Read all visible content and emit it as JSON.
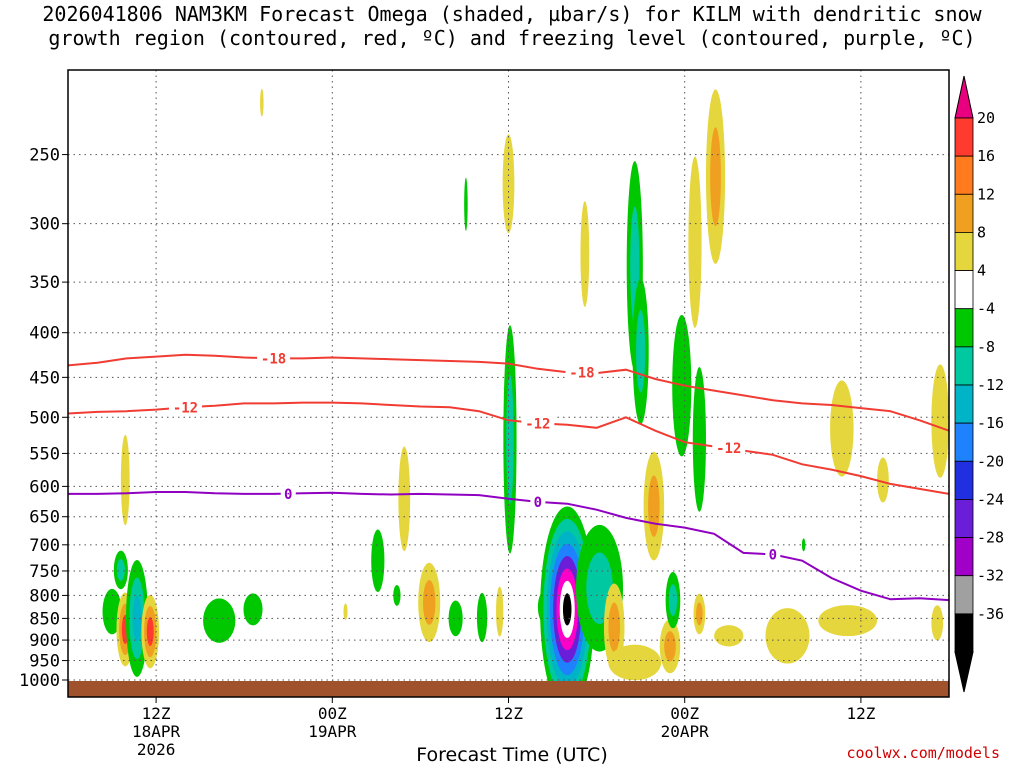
{
  "title_line1": "2026041806 NAM3KM Forecast Omega (shaded, µbar/s) for KILM with dendritic snow",
  "title_line2": "growth region (contoured, red, ºC) and freezing level (contoured, purple, ºC)",
  "credit": "coolwx.com/models",
  "chart_data": {
    "type": "heatmap",
    "xlabel": "Forecast Time (UTC)",
    "x_range_hours": [
      6,
      66
    ],
    "y_range_mb": [
      200,
      1000
    ],
    "y_scale": "log-pressure",
    "y_ticks": [
      250,
      300,
      350,
      400,
      450,
      500,
      550,
      600,
      650,
      700,
      750,
      800,
      850,
      900,
      950,
      1000
    ],
    "x_ticks": [
      {
        "hour": 12,
        "labels": [
          "12Z",
          "18APR",
          "2026"
        ]
      },
      {
        "hour": 24,
        "labels": [
          "00Z",
          "19APR"
        ]
      },
      {
        "hour": 36,
        "labels": [
          "12Z"
        ]
      },
      {
        "hour": 48,
        "labels": [
          "00Z",
          "20APR"
        ]
      },
      {
        "hour": 60,
        "labels": [
          "12Z"
        ]
      }
    ],
    "grid": true,
    "colorbar": {
      "labels": [
        "20",
        "16",
        "12",
        "8",
        "4",
        "-4",
        "-8",
        "-12",
        "-16",
        "-20",
        "-24",
        "-28",
        "-32",
        "-36"
      ],
      "colors": [
        "#ff3b30",
        "#ff7b1e",
        "#f0a020",
        "#e6d63e",
        "#ffffff",
        "#00c800",
        "#00c8a0",
        "#00b4c8",
        "#1e82ff",
        "#2030e0",
        "#6a1ed8",
        "#a000c8",
        "#a0a0a0",
        "#000000"
      ],
      "top_color": "#e8007e"
    },
    "contours": [
      {
        "label": "-18",
        "color": "#f03c32",
        "points": [
          [
            6,
            436
          ],
          [
            8,
            433
          ],
          [
            10,
            428
          ],
          [
            12,
            426
          ],
          [
            14,
            424
          ],
          [
            16,
            425
          ],
          [
            18,
            427
          ],
          [
            20,
            428
          ],
          [
            22,
            428
          ],
          [
            24,
            427
          ],
          [
            26,
            428
          ],
          [
            28,
            429
          ],
          [
            30,
            430
          ],
          [
            32,
            431
          ],
          [
            34,
            432
          ],
          [
            36,
            434
          ],
          [
            38,
            440
          ],
          [
            40,
            444
          ],
          [
            42,
            445
          ],
          [
            44,
            441
          ],
          [
            46,
            452
          ],
          [
            48,
            460
          ],
          [
            50,
            466
          ],
          [
            52,
            472
          ],
          [
            54,
            478
          ],
          [
            56,
            482
          ],
          [
            58,
            484
          ],
          [
            60,
            488
          ],
          [
            62,
            492
          ],
          [
            64,
            504
          ],
          [
            66,
            518
          ]
        ],
        "label_positions": [
          [
            20,
            428
          ],
          [
            41,
            444
          ]
        ]
      },
      {
        "label": "-12",
        "color": "#f03c32",
        "points": [
          [
            6,
            495
          ],
          [
            8,
            493
          ],
          [
            10,
            492
          ],
          [
            12,
            490
          ],
          [
            14,
            487
          ],
          [
            16,
            485
          ],
          [
            18,
            482
          ],
          [
            20,
            482
          ],
          [
            22,
            481
          ],
          [
            24,
            481
          ],
          [
            26,
            482
          ],
          [
            28,
            484
          ],
          [
            30,
            486
          ],
          [
            32,
            487
          ],
          [
            34,
            492
          ],
          [
            36,
            504
          ],
          [
            38,
            508
          ],
          [
            40,
            510
          ],
          [
            42,
            514
          ],
          [
            44,
            500
          ],
          [
            46,
            518
          ],
          [
            48,
            534
          ],
          [
            50,
            540
          ],
          [
            52,
            546
          ],
          [
            54,
            552
          ],
          [
            56,
            566
          ],
          [
            58,
            574
          ],
          [
            60,
            584
          ],
          [
            62,
            596
          ],
          [
            64,
            604
          ],
          [
            66,
            612
          ]
        ],
        "label_positions": [
          [
            14,
            487
          ],
          [
            38,
            508
          ],
          [
            51,
            542
          ]
        ]
      },
      {
        "label": "0",
        "color": "#9000c0",
        "points": [
          [
            6,
            612
          ],
          [
            8,
            612
          ],
          [
            10,
            611
          ],
          [
            12,
            609
          ],
          [
            14,
            609
          ],
          [
            16,
            611
          ],
          [
            18,
            612
          ],
          [
            20,
            612
          ],
          [
            22,
            611
          ],
          [
            24,
            610
          ],
          [
            26,
            612
          ],
          [
            28,
            613
          ],
          [
            30,
            612
          ],
          [
            32,
            613
          ],
          [
            34,
            614
          ],
          [
            36,
            620
          ],
          [
            38,
            625
          ],
          [
            40,
            628
          ],
          [
            42,
            638
          ],
          [
            44,
            652
          ],
          [
            46,
            662
          ],
          [
            48,
            669
          ],
          [
            50,
            680
          ],
          [
            52,
            715
          ],
          [
            54,
            718
          ],
          [
            56,
            730
          ],
          [
            58,
            764
          ],
          [
            60,
            790
          ],
          [
            62,
            808
          ],
          [
            64,
            806
          ],
          [
            66,
            810
          ]
        ],
        "label_positions": [
          [
            21,
            612
          ],
          [
            38,
            625
          ],
          [
            54,
            718
          ]
        ]
      }
    ],
    "omega_regions": [
      {
        "x": 9.0,
        "p": 835,
        "rx": 0.65,
        "rp": 50,
        "levels": [
          "#00c800"
        ]
      },
      {
        "x": 9.6,
        "p": 748,
        "rx": 0.48,
        "rp": 38,
        "levels": [
          "#00c800",
          "#00c8a0"
        ]
      },
      {
        "x": 9.9,
        "p": 590,
        "rx": 0.3,
        "rp": 70,
        "levels": [
          "#e6d63e"
        ]
      },
      {
        "x": 9.9,
        "p": 875,
        "rx": 0.6,
        "rp": 85,
        "levels": [
          "#e6d63e",
          "#f0a020",
          "#ff3b30"
        ]
      },
      {
        "x": 10.7,
        "p": 850,
        "rx": 0.75,
        "rp": 130,
        "levels": [
          "#00c800",
          "#00c8a0",
          "#00b4c8"
        ]
      },
      {
        "x": 11.6,
        "p": 880,
        "rx": 0.6,
        "rp": 85,
        "levels": [
          "#e6d63e",
          "#f0a020",
          "#ff3b30"
        ]
      },
      {
        "x": 16.3,
        "p": 855,
        "rx": 1.1,
        "rp": 50,
        "levels": [
          "#00c800"
        ]
      },
      {
        "x": 18.6,
        "p": 830,
        "rx": 0.65,
        "rp": 35,
        "levels": [
          "#00c800"
        ]
      },
      {
        "x": 19.2,
        "p": 218,
        "rx": 0.12,
        "rp": 8,
        "levels": [
          "#e6d63e"
        ]
      },
      {
        "x": 24.9,
        "p": 835,
        "rx": 0.14,
        "rp": 18,
        "levels": [
          "#e6d63e"
        ]
      },
      {
        "x": 27.1,
        "p": 730,
        "rx": 0.45,
        "rp": 60,
        "levels": [
          "#00c800"
        ]
      },
      {
        "x": 28.4,
        "p": 800,
        "rx": 0.25,
        "rp": 22,
        "levels": [
          "#00c800"
        ]
      },
      {
        "x": 28.9,
        "p": 620,
        "rx": 0.4,
        "rp": 85,
        "levels": [
          "#e6d63e"
        ]
      },
      {
        "x": 30.6,
        "p": 815,
        "rx": 0.75,
        "rp": 85,
        "levels": [
          "#e6d63e",
          "#f0a020"
        ]
      },
      {
        "x": 32.4,
        "p": 850,
        "rx": 0.48,
        "rp": 40,
        "levels": [
          "#00c800"
        ]
      },
      {
        "x": 33.1,
        "p": 285,
        "rx": 0.12,
        "rp": 20,
        "levels": [
          "#00c800"
        ]
      },
      {
        "x": 34.2,
        "p": 848,
        "rx": 0.35,
        "rp": 55,
        "levels": [
          "#00c800"
        ]
      },
      {
        "x": 35.4,
        "p": 835,
        "rx": 0.25,
        "rp": 55,
        "levels": [
          "#e6d63e"
        ]
      },
      {
        "x": 36.0,
        "p": 270,
        "rx": 0.4,
        "rp": 35,
        "levels": [
          "#e6d63e"
        ]
      },
      {
        "x": 36.1,
        "p": 530,
        "rx": 0.45,
        "rp": 155,
        "levels": [
          "#00c800",
          "#00c8a0"
        ]
      },
      {
        "x": 38.6,
        "p": 825,
        "rx": 0.6,
        "rp": 40,
        "levels": [
          "#00c800"
        ]
      },
      {
        "x": 40.0,
        "p": 830,
        "rx": 1.85,
        "rp": 220,
        "levels": [
          "#00c800",
          "#00c8a0",
          "#00b4c8",
          "#1e82ff",
          "#6a1ed8",
          "#ff00c8",
          "#ffffff",
          "#000000"
        ]
      },
      {
        "x": 41.2,
        "p": 325,
        "rx": 0.3,
        "rp": 45,
        "levels": [
          "#e6d63e"
        ]
      },
      {
        "x": 42.2,
        "p": 785,
        "rx": 1.6,
        "rp": 130,
        "levels": [
          "#00c800",
          "#00c8a0"
        ]
      },
      {
        "x": 43.2,
        "p": 870,
        "rx": 0.7,
        "rp": 100,
        "levels": [
          "#e6d63e",
          "#f0a020"
        ]
      },
      {
        "x": 44.6,
        "p": 335,
        "rx": 0.55,
        "rp": 90,
        "levels": [
          "#00c800",
          "#00c8a0"
        ]
      },
      {
        "x": 44.6,
        "p": 955,
        "rx": 1.8,
        "rp": 45,
        "levels": [
          "#e6d63e"
        ]
      },
      {
        "x": 45.0,
        "p": 420,
        "rx": 0.55,
        "rp": 80,
        "levels": [
          "#00c800",
          "#00c8a0"
        ]
      },
      {
        "x": 45.9,
        "p": 632,
        "rx": 0.7,
        "rp": 90,
        "levels": [
          "#e6d63e",
          "#f0a020"
        ]
      },
      {
        "x": 47.0,
        "p": 915,
        "rx": 0.7,
        "rp": 65,
        "levels": [
          "#e6d63e",
          "#f0a020"
        ]
      },
      {
        "x": 47.2,
        "p": 810,
        "rx": 0.5,
        "rp": 60,
        "levels": [
          "#00c800",
          "#00c8a0"
        ]
      },
      {
        "x": 47.8,
        "p": 460,
        "rx": 0.65,
        "rp": 85,
        "levels": [
          "#00c800"
        ]
      },
      {
        "x": 48.7,
        "p": 315,
        "rx": 0.45,
        "rp": 70,
        "levels": [
          "#e6d63e"
        ]
      },
      {
        "x": 49.0,
        "p": 530,
        "rx": 0.45,
        "rp": 100,
        "levels": [
          "#00c800"
        ]
      },
      {
        "x": 49.0,
        "p": 840,
        "rx": 0.4,
        "rp": 45,
        "levels": [
          "#e6d63e",
          "#f0a020"
        ]
      },
      {
        "x": 50.1,
        "p": 265,
        "rx": 0.65,
        "rp": 60,
        "levels": [
          "#e6d63e",
          "#f0a020"
        ]
      },
      {
        "x": 51.0,
        "p": 890,
        "rx": 1.0,
        "rp": 25,
        "levels": [
          "#e6d63e"
        ]
      },
      {
        "x": 55.0,
        "p": 890,
        "rx": 1.5,
        "rp": 65,
        "levels": [
          "#e6d63e"
        ]
      },
      {
        "x": 56.1,
        "p": 700,
        "rx": 0.12,
        "rp": 12,
        "levels": [
          "#00c800"
        ]
      },
      {
        "x": 58.7,
        "p": 515,
        "rx": 0.8,
        "rp": 65,
        "levels": [
          "#e6d63e"
        ]
      },
      {
        "x": 59.1,
        "p": 855,
        "rx": 2.0,
        "rp": 35,
        "levels": [
          "#e6d63e"
        ]
      },
      {
        "x": 61.5,
        "p": 590,
        "rx": 0.4,
        "rp": 35,
        "levels": [
          "#e6d63e"
        ]
      },
      {
        "x": 65.4,
        "p": 505,
        "rx": 0.6,
        "rp": 75,
        "levels": [
          "#e6d63e"
        ]
      },
      {
        "x": 65.2,
        "p": 860,
        "rx": 0.4,
        "rp": 40,
        "levels": [
          "#e6d63e"
        ]
      }
    ]
  }
}
